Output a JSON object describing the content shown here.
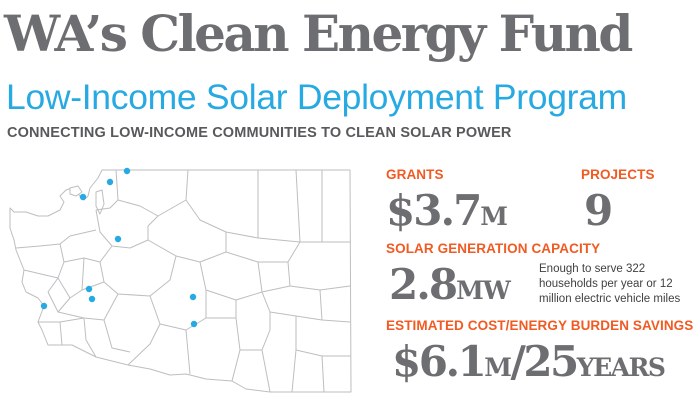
{
  "colors": {
    "title": "#6d6e71",
    "subtitle": "#27aae1",
    "tagline": "#58595b",
    "label": "#f15a22",
    "value": "#6d6e71",
    "note": "#414042",
    "map_stroke": "#bcbec0",
    "map_fill": "#ffffff",
    "marker": "#27aae1"
  },
  "header": {
    "title": "WA’s Clean Energy Fund",
    "subtitle": "Low-Income Solar Deployment Program",
    "tagline": "CONNECTING LOW-INCOME COMMUNITIES TO CLEAN SOLAR POWER"
  },
  "stats": {
    "grants": {
      "label": "GRANTS",
      "value": "$3.7",
      "unit": "M"
    },
    "projects": {
      "label": "PROJECTS",
      "value": "9"
    },
    "capacity": {
      "label": "SOLAR GENERATION CAPACITY",
      "value": "2.8",
      "unit": "MW",
      "note": "Enough to serve 322 households per year or 12 million electric vehicle miles"
    },
    "savings": {
      "label": "ESTIMATED COST/ENERGY BURDEN SAVINGS",
      "value": "$6.1",
      "unit": "M",
      "value2": "/25",
      "unit2": "YEARS"
    }
  },
  "map": {
    "region": "Washington State",
    "project_markers": 9
  }
}
